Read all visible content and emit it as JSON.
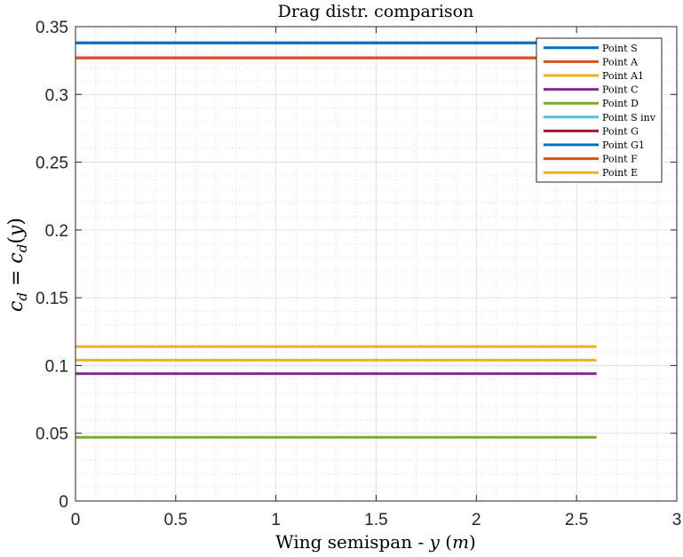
{
  "chart_data": {
    "type": "line",
    "title": "Drag distr. comparison",
    "xlabel": "Wing semispan - y (m)",
    "ylabel": "c_d = c_d(y)",
    "xlim": [
      0,
      3
    ],
    "ylim": [
      0,
      0.35
    ],
    "xticks": [
      0,
      0.5,
      1,
      1.5,
      2,
      2.5,
      3
    ],
    "xtick_labels": [
      "0",
      "0.5",
      "1",
      "1.5",
      "2",
      "2.5",
      "3"
    ],
    "yticks": [
      0,
      0.05,
      0.1,
      0.15,
      0.2,
      0.25,
      0.3,
      0.35
    ],
    "ytick_labels": [
      "0",
      "0.05",
      "0.1",
      "0.15",
      "0.2",
      "0.25",
      "0.3",
      "0.35"
    ],
    "grid": true,
    "minor_grid": true,
    "legend_position": "top-right",
    "series": [
      {
        "name": "Point S",
        "color": "#0072BD",
        "x": [
          0,
          2.6
        ],
        "y": [
          0.338,
          0.338
        ]
      },
      {
        "name": "Point A",
        "color": "#D95319",
        "x": [
          0,
          2.6
        ],
        "y": [
          0.327,
          0.327
        ]
      },
      {
        "name": "Point A1",
        "color": "#EDB120",
        "x": [
          0,
          2.6
        ],
        "y": [
          0.114,
          0.114
        ]
      },
      {
        "name": "Point C",
        "color": "#7E2F8E",
        "x": [
          0,
          2.6
        ],
        "y": [
          0.094,
          0.094
        ]
      },
      {
        "name": "Point D",
        "color": "#77AC30",
        "x": [
          0,
          2.6
        ],
        "y": [
          0.047,
          0.047
        ]
      },
      {
        "name": "Point S inv",
        "color": "#4DBEEE",
        "x": [
          0,
          2.6
        ],
        "y": [
          0.338,
          0.338
        ]
      },
      {
        "name": "Point G",
        "color": "#A2142F",
        "x": [
          0,
          2.6
        ],
        "y": [
          0.327,
          0.327
        ]
      },
      {
        "name": "Point G1",
        "color": "#0072BD",
        "x": [
          0,
          2.6
        ],
        "y": [
          0.338,
          0.338
        ]
      },
      {
        "name": "Point F",
        "color": "#D95319",
        "x": [
          0,
          2.6
        ],
        "y": [
          0.327,
          0.327
        ]
      },
      {
        "name": "Point E",
        "color": "#EDB120",
        "x": [
          0,
          2.6
        ],
        "y": [
          0.104,
          0.104
        ]
      }
    ]
  }
}
